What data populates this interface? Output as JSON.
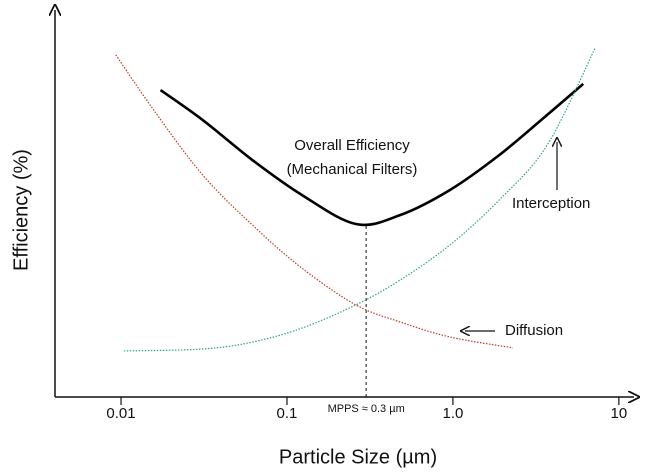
{
  "chart_data": {
    "type": "line",
    "x_label": "Particle Size (µm)",
    "y_label": "Efficiency (%)",
    "xscale": "log",
    "xlim": [
      0.004,
      12
    ],
    "xticks": [
      0.01,
      0.1,
      {
        "value": 1,
        "label": "1.0"
      },
      10
    ],
    "ylim": [
      0,
      100
    ],
    "series": [
      {
        "name": "Overall Efficiency (Mechanical Filters)",
        "color": "#000000",
        "style": "solid",
        "x": [
          0.0173,
          0.031,
          0.062,
          0.123,
          0.26,
          0.48,
          0.96,
          1.9,
          3.7,
          6.1
        ],
        "values": [
          79.3,
          71.6,
          61.2,
          52.2,
          44.7,
          47.0,
          53.5,
          62.5,
          72.9,
          80.9
        ]
      },
      {
        "name": "Diffusion",
        "color": "#c0392b",
        "style": "dotted",
        "x": [
          0.0093,
          0.0157,
          0.031,
          0.062,
          0.123,
          0.26,
          0.48,
          0.96,
          2.3
        ],
        "values": [
          88.4,
          74.2,
          57.4,
          44.4,
          33.3,
          23.8,
          19.4,
          15.5,
          12.7
        ]
      },
      {
        "name": "Interception",
        "color": "#2aa876",
        "style": "dotted",
        "x": [
          0.0104,
          0.031,
          0.062,
          0.123,
          0.26,
          0.48,
          0.96,
          1.9,
          3.7,
          7.2
        ],
        "values": [
          11.9,
          12.4,
          14.2,
          17.8,
          23.8,
          30.2,
          39.3,
          50.9,
          65.1,
          90.2
        ]
      }
    ],
    "curve_labels": [
      "Overall Efficiency",
      "(Mechanical Filters)",
      "Interception",
      "Diffusion"
    ],
    "annotation": {
      "text": "MPPS ≈ 0.3 µm",
      "x": 0.3
    }
  }
}
